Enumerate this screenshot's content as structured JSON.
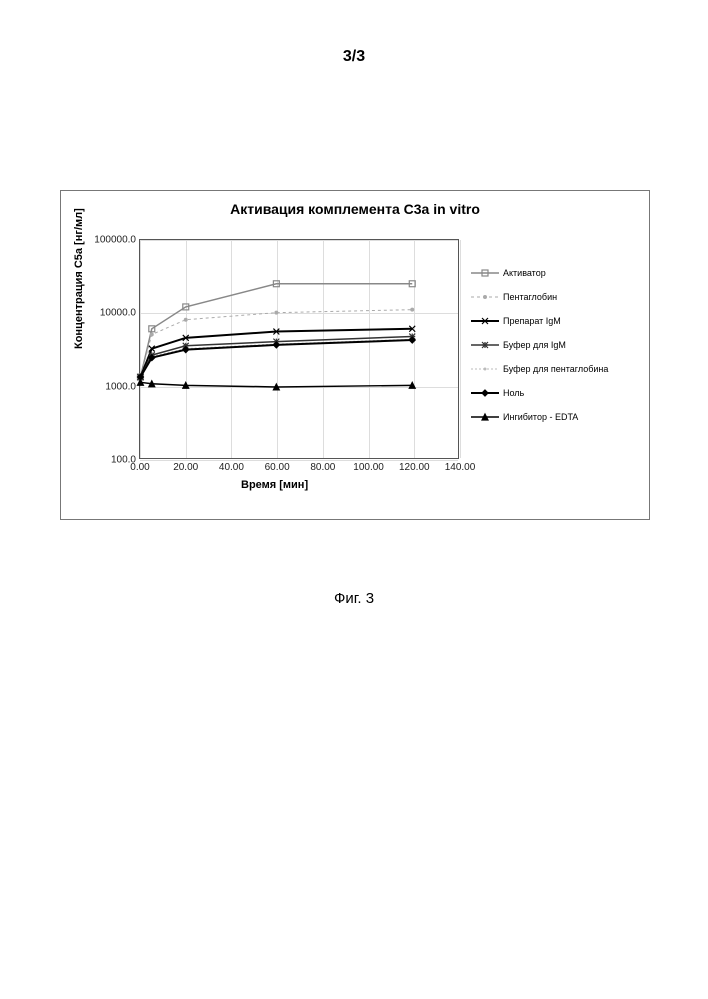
{
  "page": {
    "header": "3/3",
    "figure_caption": "Фиг. 3",
    "background_color": "#ffffff"
  },
  "chart": {
    "type": "line",
    "title": "Активация комплемента C3a in vitro",
    "title_fontsize": 14,
    "x_label": "Время [мин]",
    "y_label": "Концентрация C5a [нг/мл]",
    "label_fontsize": 11,
    "tick_fontsize": 10,
    "plot_border_color": "#555555",
    "grid_color": "#dddddd",
    "background_color": "#ffffff",
    "x_scale": "linear",
    "y_scale": "log",
    "xlim": [
      0,
      140
    ],
    "ylim": [
      100,
      100000
    ],
    "x_ticks": [
      0,
      20,
      40,
      60,
      80,
      100,
      120,
      140
    ],
    "x_tick_labels": [
      "0.00",
      "20.00",
      "40.00",
      "60.00",
      "80.00",
      "100.00",
      "120.00",
      "140.00"
    ],
    "y_ticks": [
      100,
      1000,
      10000,
      100000
    ],
    "y_tick_labels": [
      "100.0",
      "1000.0",
      "10000.0",
      "100000.0"
    ],
    "series": [
      {
        "name": "Активатор",
        "color": "#888888",
        "line_width": 1.5,
        "dash": "none",
        "marker": "square-open",
        "marker_size": 6,
        "x": [
          0,
          5,
          20,
          60,
          120
        ],
        "y": [
          1300,
          6000,
          12000,
          25000,
          25000
        ]
      },
      {
        "name": "Пентаглобин",
        "color": "#aaaaaa",
        "line_width": 1,
        "dash": "3,3",
        "marker": "dot",
        "marker_size": 4,
        "x": [
          0,
          5,
          20,
          60,
          120
        ],
        "y": [
          1300,
          5000,
          8000,
          10000,
          11000
        ]
      },
      {
        "name": "Препарат IgM",
        "color": "#000000",
        "line_width": 2,
        "dash": "none",
        "marker": "x",
        "marker_size": 6,
        "x": [
          0,
          5,
          20,
          60,
          120
        ],
        "y": [
          1300,
          3200,
          4500,
          5500,
          6000
        ]
      },
      {
        "name": "Буфер для IgM",
        "color": "#333333",
        "line_width": 1.5,
        "dash": "none",
        "marker": "asterisk",
        "marker_size": 6,
        "x": [
          0,
          5,
          20,
          60,
          120
        ],
        "y": [
          1300,
          2600,
          3500,
          4000,
          4700
        ]
      },
      {
        "name": "Буфер для пентаглобина",
        "color": "#bbbbbb",
        "line_width": 1,
        "dash": "2,2",
        "marker": "dot",
        "marker_size": 3,
        "x": [
          0,
          5,
          20,
          60,
          120
        ],
        "y": [
          1300,
          2500,
          3200,
          3700,
          4300
        ]
      },
      {
        "name": "Ноль",
        "color": "#000000",
        "line_width": 2,
        "dash": "none",
        "marker": "diamond",
        "marker_size": 6,
        "x": [
          0,
          5,
          20,
          60,
          120
        ],
        "y": [
          1300,
          2400,
          3100,
          3600,
          4200
        ]
      },
      {
        "name": "Ингибитор - EDTA",
        "color": "#000000",
        "line_width": 1.5,
        "dash": "none",
        "marker": "triangle",
        "marker_size": 6,
        "x": [
          0,
          5,
          20,
          60,
          120
        ],
        "y": [
          1100,
          1050,
          1000,
          950,
          1000
        ]
      }
    ],
    "legend_position": "right"
  }
}
